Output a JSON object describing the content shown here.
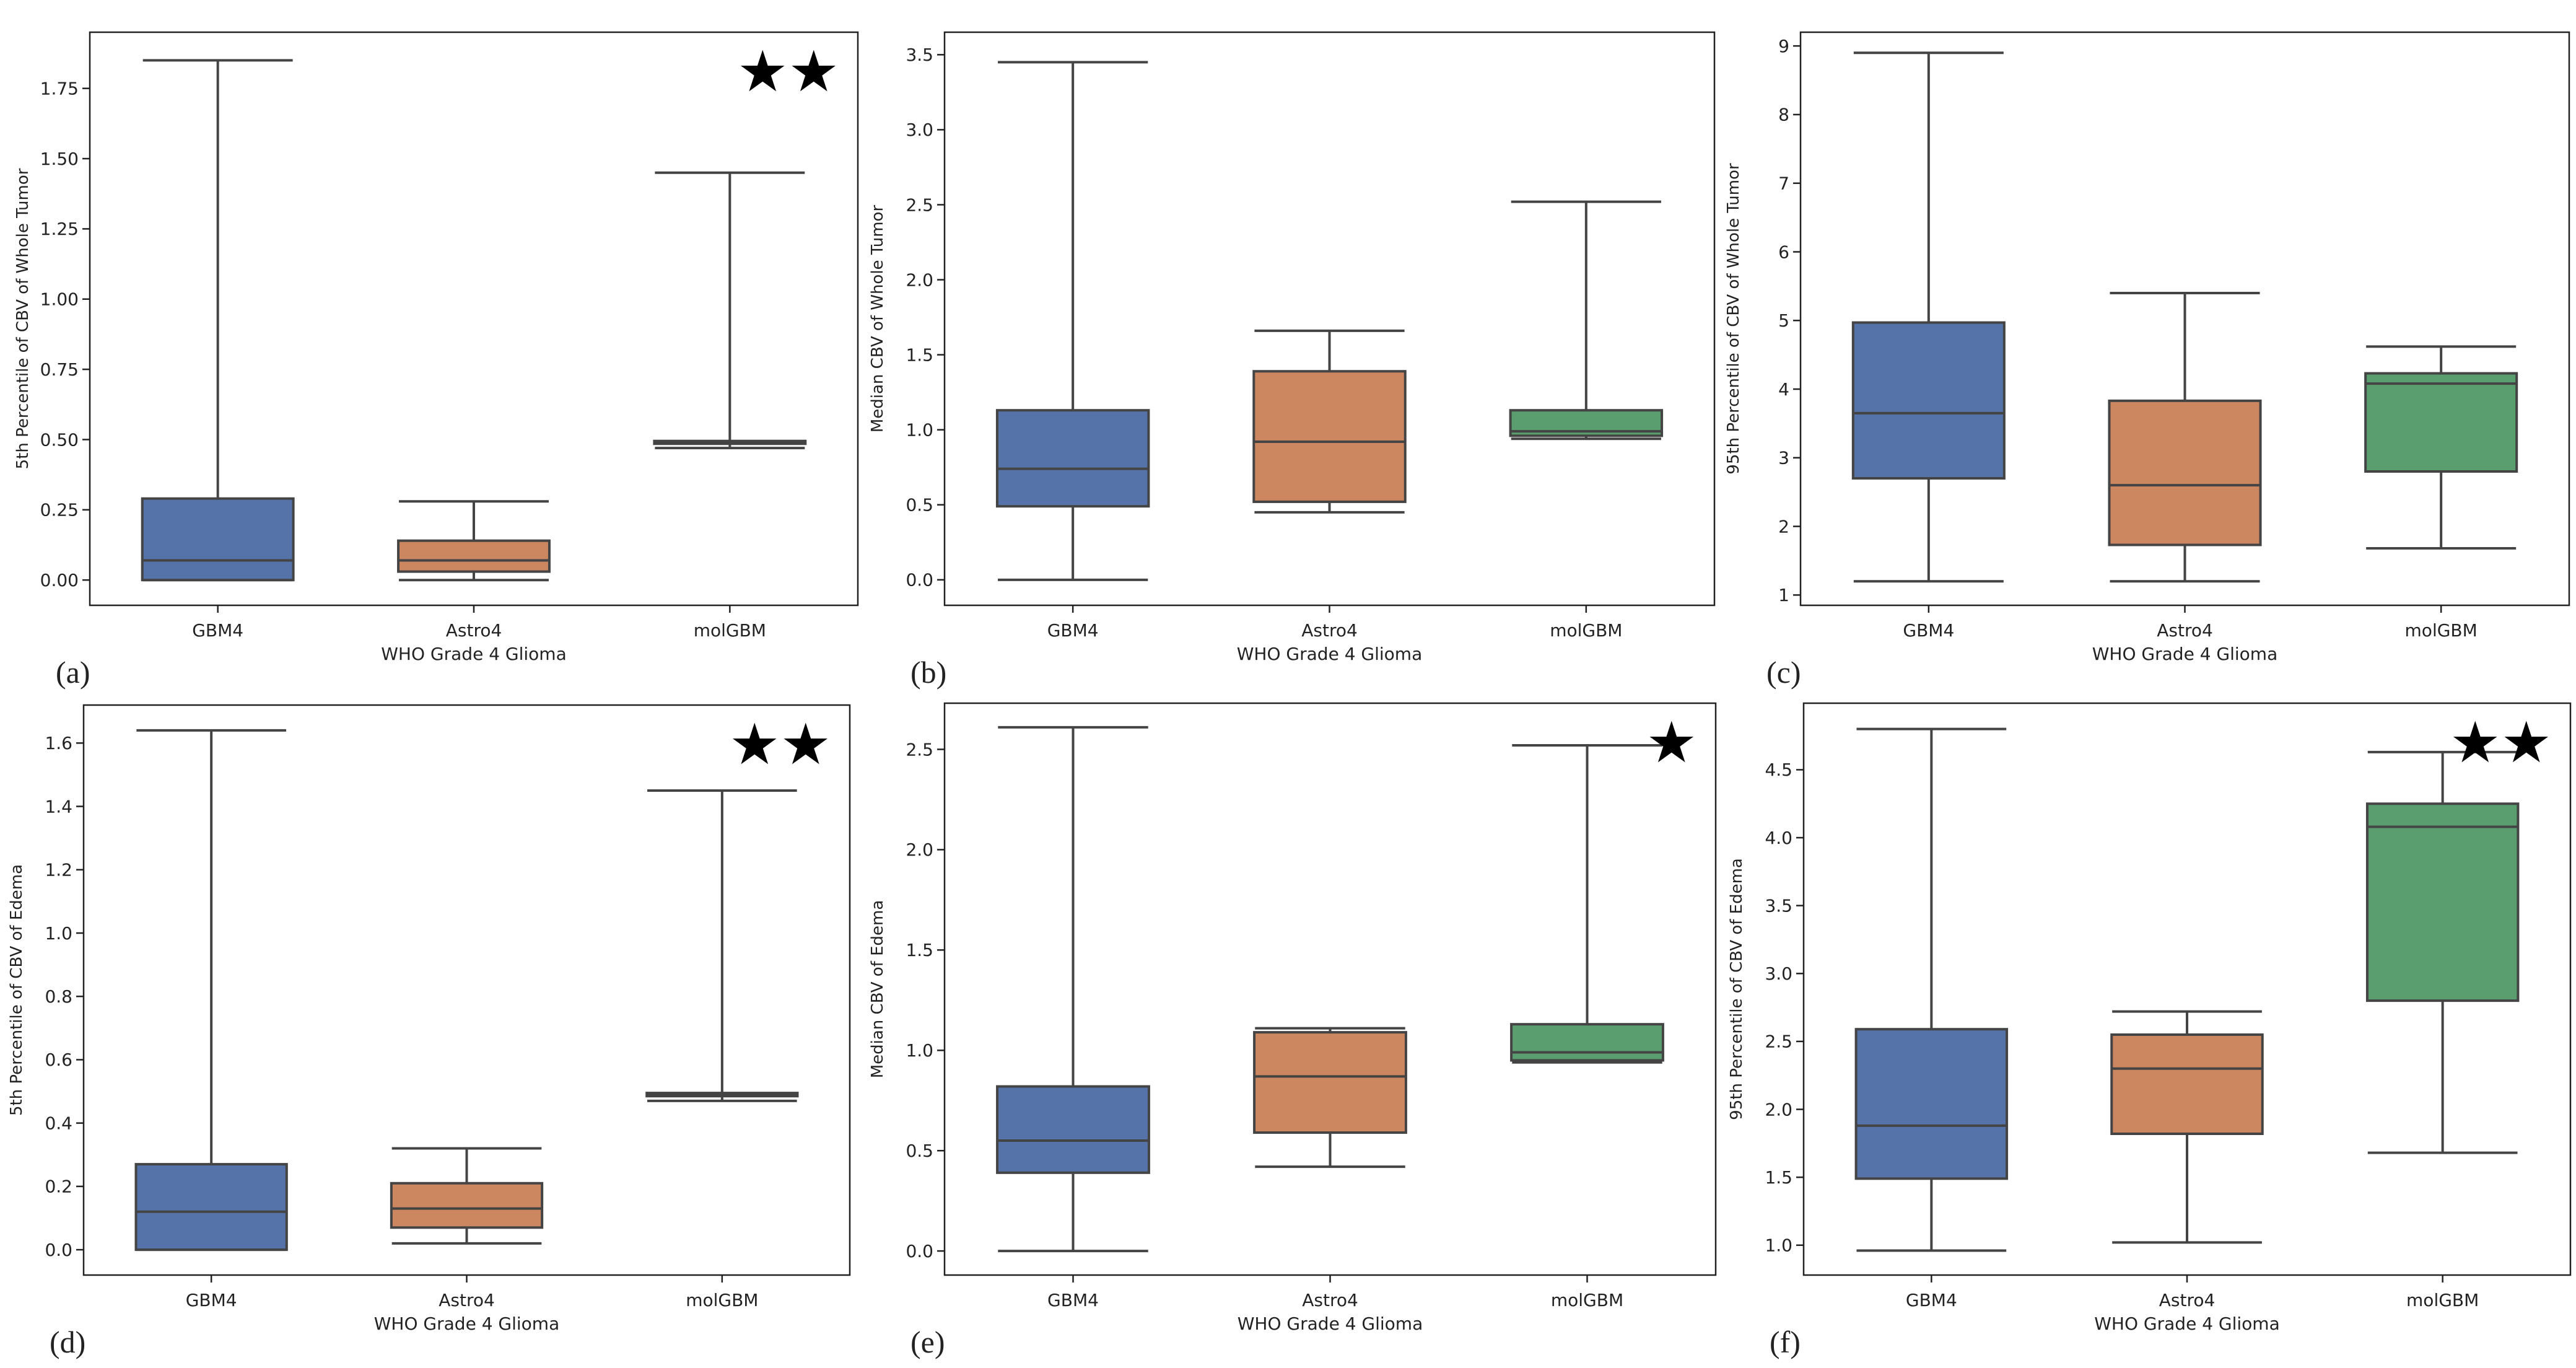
{
  "colors": {
    "GBM4": "#5573a8",
    "Astro4": "#cc8660",
    "molGBM": "#5a9e6f",
    "line": "#444444",
    "frame": "#222222",
    "star": "#000000"
  },
  "chart_data": [
    {
      "type": "box",
      "panel_label": "(a)",
      "ylabel": "5th Percentile of CBV of Whole Tumor",
      "xlabel": "WHO Grade 4 Glioma",
      "categories": [
        "GBM4",
        "Astro4",
        "molGBM"
      ],
      "ylim": [
        -0.09,
        1.95
      ],
      "yticks": [
        "0.00",
        "0.25",
        "0.50",
        "0.75",
        "1.00",
        "1.25",
        "1.50",
        "1.75"
      ],
      "stars": "★★",
      "boxes": [
        {
          "category": "GBM4",
          "min": 0.0,
          "q1": 0.0,
          "median": 0.07,
          "q3": 0.29,
          "max": 1.85
        },
        {
          "category": "Astro4",
          "min": 0.0,
          "q1": 0.03,
          "median": 0.07,
          "q3": 0.14,
          "max": 0.28
        },
        {
          "category": "molGBM",
          "min": 0.47,
          "q1": 0.485,
          "median": 0.49,
          "q3": 0.495,
          "max": 1.45
        }
      ]
    },
    {
      "type": "box",
      "panel_label": "(b)",
      "ylabel": "Median CBV of Whole Tumor",
      "xlabel": "WHO Grade 4 Glioma",
      "categories": [
        "GBM4",
        "Astro4",
        "molGBM"
      ],
      "ylim": [
        -0.17,
        3.65
      ],
      "yticks": [
        "0.0",
        "0.5",
        "1.0",
        "1.5",
        "2.0",
        "2.5",
        "3.0",
        "3.5"
      ],
      "stars": "",
      "boxes": [
        {
          "category": "GBM4",
          "min": 0.0,
          "q1": 0.49,
          "median": 0.74,
          "q3": 1.13,
          "max": 3.45
        },
        {
          "category": "Astro4",
          "min": 0.45,
          "q1": 0.52,
          "median": 0.92,
          "q3": 1.39,
          "max": 1.66
        },
        {
          "category": "molGBM",
          "min": 0.94,
          "q1": 0.96,
          "median": 0.99,
          "q3": 1.13,
          "max": 2.52
        }
      ]
    },
    {
      "type": "box",
      "panel_label": "(c)",
      "ylabel": "95th Percentile of CBV of Whole Tumor",
      "xlabel": "WHO Grade 4 Glioma",
      "categories": [
        "GBM4",
        "Astro4",
        "molGBM"
      ],
      "ylim": [
        0.85,
        9.2
      ],
      "yticks": [
        "1",
        "2",
        "3",
        "4",
        "5",
        "6",
        "7",
        "8",
        "9"
      ],
      "stars": "",
      "boxes": [
        {
          "category": "GBM4",
          "min": 1.2,
          "q1": 2.7,
          "median": 3.65,
          "q3": 4.97,
          "max": 8.9
        },
        {
          "category": "Astro4",
          "min": 1.2,
          "q1": 1.73,
          "median": 2.6,
          "q3": 3.83,
          "max": 5.4
        },
        {
          "category": "molGBM",
          "min": 1.68,
          "q1": 2.8,
          "median": 4.08,
          "q3": 4.23,
          "max": 4.62
        }
      ]
    },
    {
      "type": "box",
      "panel_label": "(d)",
      "ylabel": "5th Percentile of CBV of Edema",
      "xlabel": "WHO Grade 4 Glioma",
      "categories": [
        "GBM4",
        "Astro4",
        "molGBM"
      ],
      "ylim": [
        -0.08,
        1.72
      ],
      "yticks": [
        "0.0",
        "0.2",
        "0.4",
        "0.6",
        "0.8",
        "1.0",
        "1.2",
        "1.4",
        "1.6"
      ],
      "stars": "★★",
      "boxes": [
        {
          "category": "GBM4",
          "min": 0.0,
          "q1": 0.0,
          "median": 0.12,
          "q3": 0.27,
          "max": 1.64
        },
        {
          "category": "Astro4",
          "min": 0.02,
          "q1": 0.07,
          "median": 0.13,
          "q3": 0.21,
          "max": 0.32
        },
        {
          "category": "molGBM",
          "min": 0.47,
          "q1": 0.485,
          "median": 0.49,
          "q3": 0.495,
          "max": 1.45
        }
      ]
    },
    {
      "type": "box",
      "panel_label": "(e)",
      "ylabel": "Median CBV of Edema",
      "xlabel": "WHO Grade 4 Glioma",
      "categories": [
        "GBM4",
        "Astro4",
        "molGBM"
      ],
      "ylim": [
        -0.12,
        2.73
      ],
      "yticks": [
        "0.0",
        "0.5",
        "1.0",
        "1.5",
        "2.0",
        "2.5"
      ],
      "stars": "★",
      "boxes": [
        {
          "category": "GBM4",
          "min": 0.0,
          "q1": 0.39,
          "median": 0.55,
          "q3": 0.82,
          "max": 2.61
        },
        {
          "category": "Astro4",
          "min": 0.42,
          "q1": 0.59,
          "median": 0.87,
          "q3": 1.09,
          "max": 1.11
        },
        {
          "category": "molGBM",
          "min": 0.94,
          "q1": 0.95,
          "median": 0.99,
          "q3": 1.13,
          "max": 2.52
        }
      ]
    },
    {
      "type": "box",
      "panel_label": "(f)",
      "ylabel": "95th Percentile of CBV of Edema",
      "xlabel": "WHO Grade 4 Glioma",
      "categories": [
        "GBM4",
        "Astro4",
        "molGBM"
      ],
      "ylim": [
        0.78,
        4.99
      ],
      "yticks": [
        "1.0",
        "1.5",
        "2.0",
        "2.5",
        "3.0",
        "3.5",
        "4.0",
        "4.5"
      ],
      "stars": "★★",
      "boxes": [
        {
          "category": "GBM4",
          "min": 0.96,
          "q1": 1.49,
          "median": 1.88,
          "q3": 2.59,
          "max": 4.8
        },
        {
          "category": "Astro4",
          "min": 1.02,
          "q1": 1.82,
          "median": 2.3,
          "q3": 2.55,
          "max": 2.72
        },
        {
          "category": "molGBM",
          "min": 1.68,
          "q1": 2.8,
          "median": 4.08,
          "q3": 4.25,
          "max": 4.63
        }
      ]
    }
  ]
}
